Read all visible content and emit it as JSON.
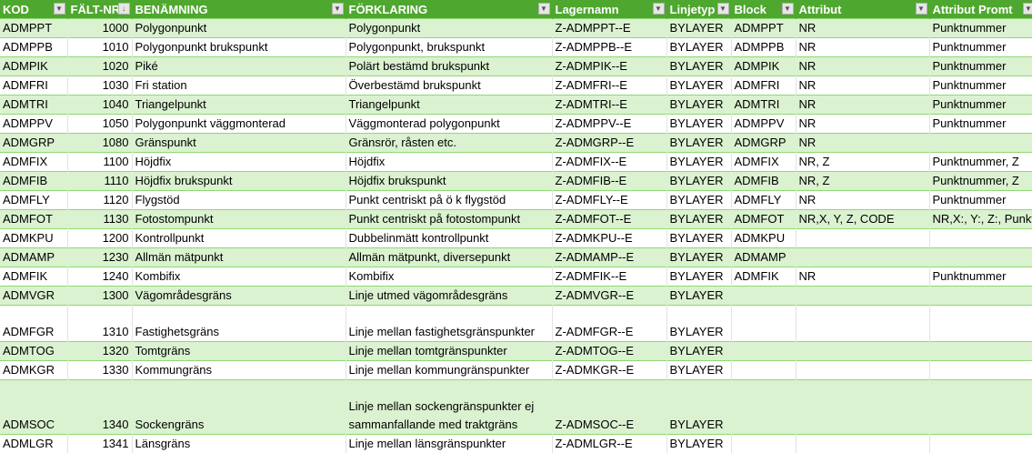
{
  "header": [
    "KOD",
    "FÄLT-NR",
    "BENÄMNING",
    "FÖRKLARING",
    "Lagernamn",
    "Linjetyp",
    "Block",
    "Attribut",
    "Attribut Promt"
  ],
  "colors": {
    "header_bg": "#4EA72E",
    "band": "#DAF2D0",
    "row_line": "#8ED973"
  },
  "rows": [
    {
      "kod": "ADMPPT",
      "nr": "1000",
      "ben": "Polygonpunkt",
      "fork": "Polygonpunkt",
      "lager": "Z-ADMPPT--E",
      "linje": "BYLAYER",
      "block": "ADMPPT",
      "attr": "NR",
      "promt": "Punktnummer",
      "h": 1
    },
    {
      "kod": "ADMPPB",
      "nr": "1010",
      "ben": "Polygonpunkt brukspunkt",
      "fork": "Polygonpunkt, brukspunkt",
      "lager": "Z-ADMPPB--E",
      "linje": "BYLAYER",
      "block": "ADMPPB",
      "attr": "NR",
      "promt": "Punktnummer",
      "h": 1
    },
    {
      "kod": "ADMPIK",
      "nr": "1020",
      "ben": "Piké",
      "fork": "Polärt bestämd brukspunkt",
      "lager": "Z-ADMPIK--E",
      "linje": "BYLAYER",
      "block": "ADMPIK",
      "attr": "NR",
      "promt": "Punktnummer",
      "h": 1
    },
    {
      "kod": "ADMFRI",
      "nr": "1030",
      "ben": "Fri station",
      "fork": "Överbestämd brukspunkt",
      "lager": "Z-ADMFRI--E",
      "linje": "BYLAYER",
      "block": "ADMFRI",
      "attr": "NR",
      "promt": "Punktnummer",
      "h": 1
    },
    {
      "kod": "ADMTRI",
      "nr": "1040",
      "ben": "Triangelpunkt",
      "fork": "Triangelpunkt",
      "lager": "Z-ADMTRI--E",
      "linje": "BYLAYER",
      "block": "ADMTRI",
      "attr": "NR",
      "promt": "Punktnummer",
      "h": 1
    },
    {
      "kod": "ADMPPV",
      "nr": "1050",
      "ben": "Polygonpunkt väggmonterad",
      "fork": "Väggmonterad polygonpunkt",
      "lager": "Z-ADMPPV--E",
      "linje": "BYLAYER",
      "block": "ADMPPV",
      "attr": "NR",
      "promt": "Punktnummer",
      "h": 1
    },
    {
      "kod": "ADMGRP",
      "nr": "1080",
      "ben": "Gränspunkt",
      "fork": "Gränsrör, råsten etc.",
      "lager": "Z-ADMGRP--E",
      "linje": "BYLAYER",
      "block": "ADMGRP",
      "attr": "NR",
      "promt": "",
      "h": 1
    },
    {
      "kod": "ADMFIX",
      "nr": "1100",
      "ben": "Höjdfix",
      "fork": "Höjdfix",
      "lager": "Z-ADMFIX--E",
      "linje": "BYLAYER",
      "block": "ADMFIX",
      "attr": "NR, Z",
      "promt": "Punktnummer, Z",
      "h": 1
    },
    {
      "kod": "ADMFIB",
      "nr": "1110",
      "ben": "Höjdfix brukspunkt",
      "fork": "Höjdfix brukspunkt",
      "lager": "Z-ADMFIB--E",
      "linje": "BYLAYER",
      "block": "ADMFIB",
      "attr": "NR, Z",
      "promt": "Punktnummer, Z",
      "h": 1
    },
    {
      "kod": "ADMFLY",
      "nr": "1120",
      "ben": "Flygstöd",
      "fork": "Punkt centriskt på ö k flygstöd",
      "lager": "Z-ADMFLY--E",
      "linje": "BYLAYER",
      "block": "ADMFLY",
      "attr": "NR",
      "promt": "Punktnummer",
      "h": 1
    },
    {
      "kod": "ADMFOT",
      "nr": "1130",
      "ben": "Fotostompunkt",
      "fork": "Punkt centriskt på fotostompunkt",
      "lager": "Z-ADMFOT--E",
      "linje": "BYLAYER",
      "block": "ADMFOT",
      "attr": "NR,X, Y, Z, CODE",
      "promt": "NR,X:, Y:, Z:, Punkt",
      "h": 1
    },
    {
      "kod": "ADMKPU",
      "nr": "1200",
      "ben": "Kontrollpunkt",
      "fork": "Dubbelinmätt kontrollpunkt",
      "lager": "Z-ADMKPU--E",
      "linje": "BYLAYER",
      "block": "ADMKPU",
      "attr": "",
      "promt": "",
      "h": 1
    },
    {
      "kod": "ADMAMP",
      "nr": "1230",
      "ben": "Allmän mätpunkt",
      "fork": "Allmän mätpunkt, diversepunkt",
      "lager": "Z-ADMAMP--E",
      "linje": "BYLAYER",
      "block": "ADMAMP",
      "attr": "",
      "promt": "",
      "h": 1
    },
    {
      "kod": "ADMFIK",
      "nr": "1240",
      "ben": "Kombifix",
      "fork": "Kombifix",
      "lager": "Z-ADMFIK--E",
      "linje": "BYLAYER",
      "block": "ADMFIK",
      "attr": "NR",
      "promt": "Punktnummer",
      "h": 1
    },
    {
      "kod": "ADMVGR",
      "nr": "1300",
      "ben": "Vägområdesgräns",
      "fork": "Linje utmed vägområdesgräns",
      "lager": "Z-ADMVGR--E",
      "linje": "BYLAYER",
      "block": "",
      "attr": "",
      "promt": "",
      "h": 1
    },
    {
      "kod": "ADMFGR",
      "nr": "1310",
      "ben": "Fastighetsgräns",
      "fork": "Linje mellan fastighetsgränspunkter",
      "lager": "Z-ADMFGR--E",
      "linje": "BYLAYER",
      "block": "",
      "attr": "",
      "promt": "",
      "h": 2
    },
    {
      "kod": "ADMTOG",
      "nr": "1320",
      "ben": "Tomtgräns",
      "fork": "Linje mellan tomtgränspunkter",
      "lager": "Z-ADMTOG--E",
      "linje": "BYLAYER",
      "block": "",
      "attr": "",
      "promt": "",
      "h": 1
    },
    {
      "kod": "ADMKGR",
      "nr": "1330",
      "ben": "Kommungräns",
      "fork": "Linje mellan kommungränspunkter",
      "lager": "Z-ADMKGR--E",
      "linje": "BYLAYER",
      "block": "",
      "attr": "",
      "promt": "",
      "h": 1
    },
    {
      "kod": "ADMSOC",
      "nr": "1340",
      "ben": "Sockengräns",
      "fork": "Linje mellan sockengränspunkter ej sammanfallande med traktgräns",
      "lager": "Z-ADMSOC--E",
      "linje": "BYLAYER",
      "block": "",
      "attr": "",
      "promt": "",
      "h": 3
    },
    {
      "kod": "ADMLGR",
      "nr": "1341",
      "ben": "Länsgräns",
      "fork": "Linje mellan länsgränspunkter",
      "lager": "Z-ADMLGR--E",
      "linje": "BYLAYER",
      "block": "",
      "attr": "",
      "promt": "",
      "h": 1
    }
  ]
}
